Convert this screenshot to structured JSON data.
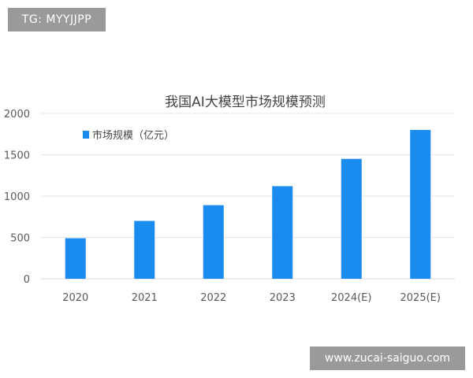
{
  "watermarks": {
    "top_left": "TG: MYYJJPP",
    "bottom_right": "www.zucai-saiguo.com"
  },
  "colors": {
    "bar": "#1a8cf0",
    "grid": "#e6e6e6",
    "watermark_bg": "#9a9a9a"
  },
  "chart_data": {
    "type": "bar",
    "title": "我国AI大模型市场规模预测",
    "xlabel": "",
    "ylabel": "",
    "categories": [
      "2020",
      "2021",
      "2022",
      "2023",
      "2024(E)",
      "2025(E)"
    ],
    "series": [
      {
        "name": "市场规模（亿元）",
        "values": [
          490,
          700,
          890,
          1120,
          1450,
          1800
        ]
      }
    ],
    "ylim": [
      0,
      2000
    ],
    "yticks": [
      0,
      500,
      1000,
      1500,
      2000
    ],
    "grid": true,
    "legend_position": "top-left"
  }
}
